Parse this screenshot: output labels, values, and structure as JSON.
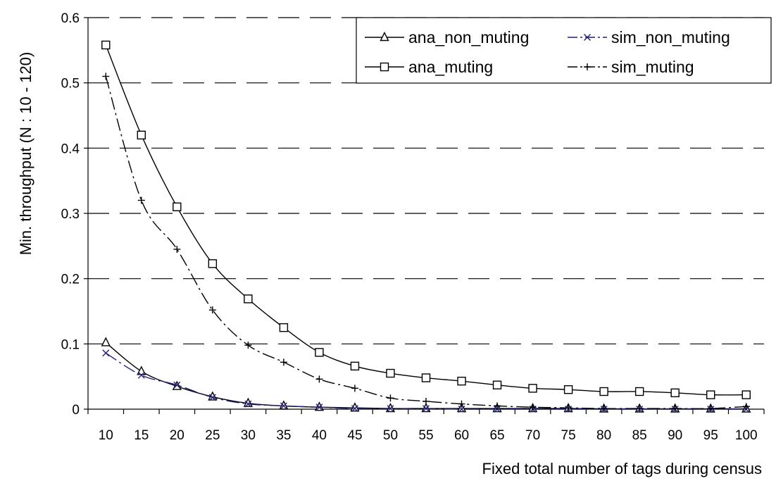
{
  "chart_data": {
    "type": "line",
    "title": "",
    "xlabel": "Fixed total number of tags during census",
    "ylabel": "Min. throughput (N : 10 - 120)",
    "categories": [
      10,
      15,
      20,
      25,
      30,
      35,
      40,
      45,
      50,
      55,
      60,
      65,
      70,
      75,
      80,
      85,
      90,
      95,
      100
    ],
    "ylim": [
      0,
      0.6
    ],
    "yticks": [
      "0",
      "0.1",
      "0.2",
      "0.3",
      "0.4",
      "0.5",
      "0.6"
    ],
    "grid": "horizontal dashed",
    "legend_position": "top-right",
    "series": [
      {
        "name": "ana_non_muting",
        "marker": "triangle",
        "color": "#000000",
        "dash": "solid",
        "values": [
          0.102,
          0.058,
          0.035,
          0.019,
          0.009,
          0.005,
          0.003,
          0.002,
          0.001,
          0.001,
          0.001,
          0.001,
          0.001,
          0.001,
          0.0005,
          0.0005,
          0.0005,
          0.0005,
          0.0005
        ]
      },
      {
        "name": "sim_non_muting",
        "marker": "x",
        "color": "#1f1f7a",
        "dash": "dashdot",
        "values": [
          0.086,
          0.052,
          0.037,
          0.018,
          0.008,
          0.005,
          0.003,
          0.001,
          0.001,
          0.001,
          0.0,
          0.0,
          0.0,
          0.0,
          0.0,
          0.0,
          0.0,
          0.0,
          0.0
        ]
      },
      {
        "name": "ana_muting",
        "marker": "square",
        "color": "#000000",
        "dash": "solid",
        "values": [
          0.558,
          0.42,
          0.31,
          0.223,
          0.169,
          0.125,
          0.087,
          0.066,
          0.055,
          0.048,
          0.043,
          0.037,
          0.032,
          0.03,
          0.027,
          0.027,
          0.025,
          0.022,
          0.022
        ]
      },
      {
        "name": "sim_muting",
        "marker": "plus",
        "color": "#000000",
        "dash": "dashdot",
        "values": [
          0.51,
          0.32,
          0.245,
          0.152,
          0.098,
          0.072,
          0.046,
          0.032,
          0.017,
          0.012,
          0.008,
          0.005,
          0.003,
          0.002,
          0.001,
          0.001,
          0.001,
          0.001,
          0.004
        ]
      }
    ]
  }
}
